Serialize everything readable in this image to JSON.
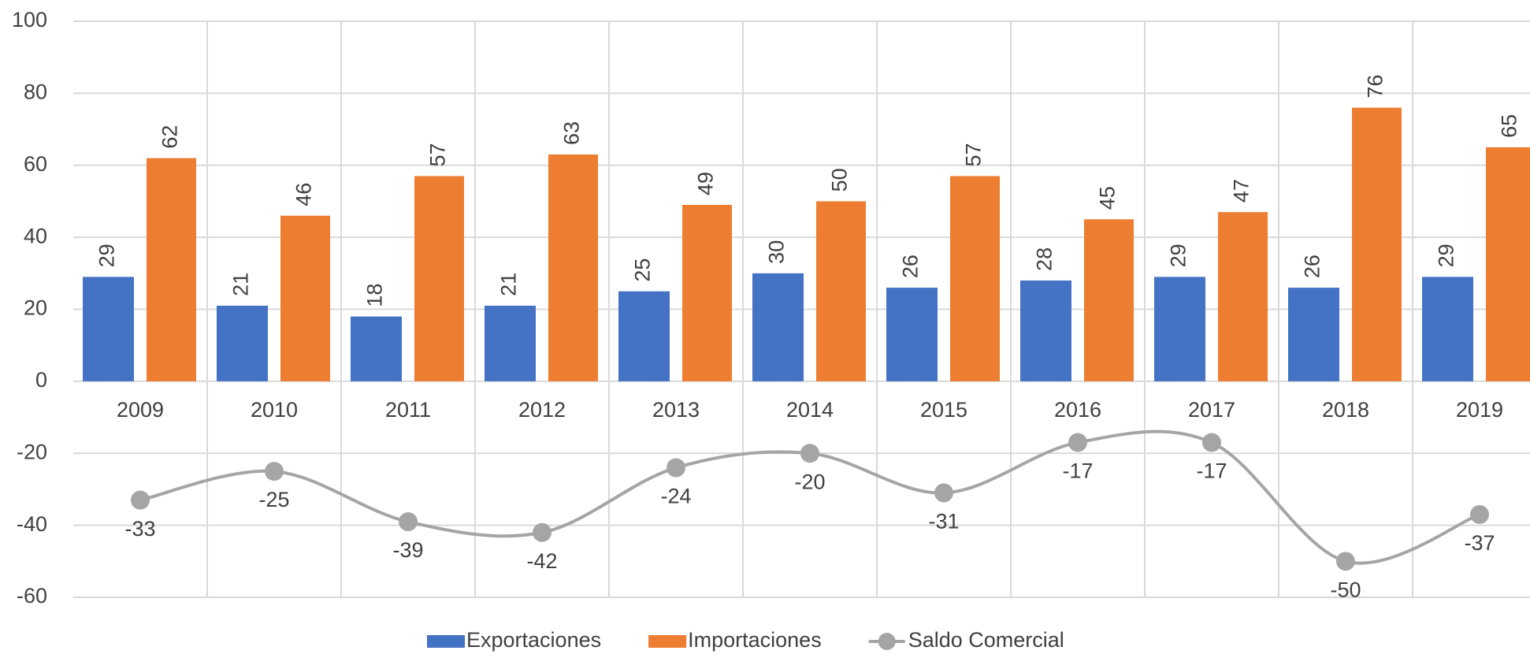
{
  "chart_data": {
    "type": "bar",
    "categories": [
      "2009",
      "2010",
      "2011",
      "2012",
      "2013",
      "2014",
      "2015",
      "2016",
      "2017",
      "2018",
      "2019"
    ],
    "series": [
      {
        "name": "Exportaciones",
        "type": "bar",
        "color": "#4472c4",
        "values": [
          29,
          21,
          18,
          21,
          25,
          30,
          26,
          28,
          29,
          26,
          29
        ]
      },
      {
        "name": "Importaciones",
        "type": "bar",
        "color": "#ed7d31",
        "values": [
          62,
          46,
          57,
          63,
          49,
          50,
          57,
          45,
          47,
          76,
          65
        ]
      },
      {
        "name": "Saldo Comercial",
        "type": "line",
        "color": "#a5a5a5",
        "values": [
          -33,
          -25,
          -39,
          -42,
          -24,
          -20,
          -31,
          -17,
          -17,
          -50,
          -37
        ]
      }
    ],
    "ylim": [
      -60,
      100
    ],
    "yticks": [
      -60,
      -40,
      -20,
      0,
      20,
      40,
      60,
      80,
      100
    ],
    "grid": true,
    "legend": "bottom"
  }
}
